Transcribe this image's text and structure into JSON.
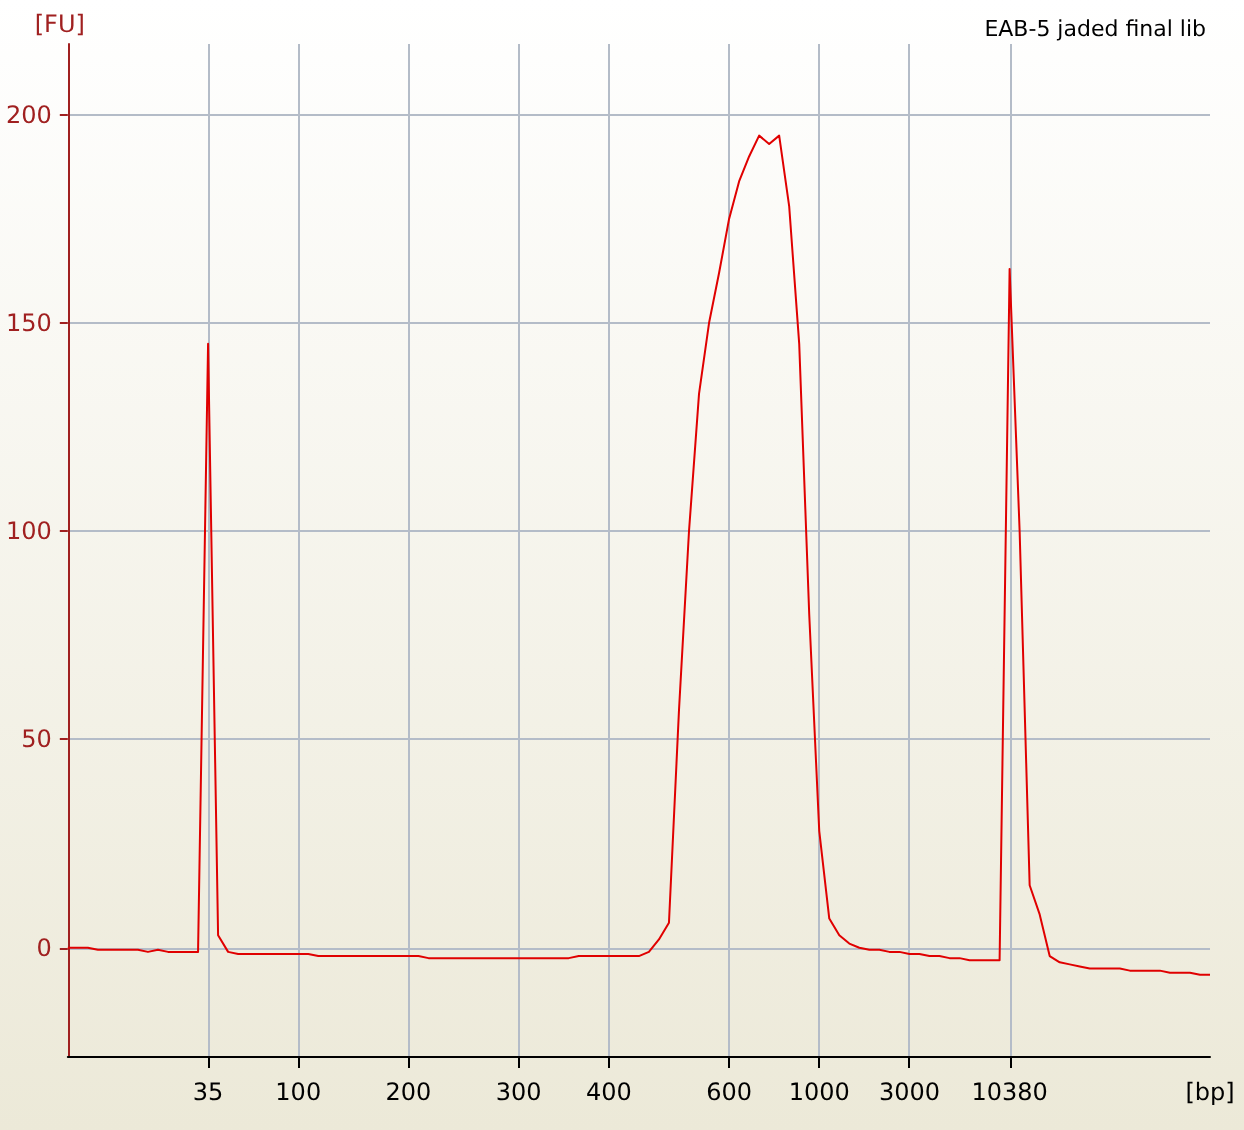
{
  "chart_data": {
    "type": "line",
    "title": "EAB-5 jaded final lib",
    "xlabel": "[bp]",
    "ylabel": "[FU]",
    "categories": [
      null,
      null,
      null,
      null,
      null,
      null,
      null,
      null,
      null,
      null,
      null,
      null,
      null,
      null,
      "35",
      null,
      null,
      null,
      null,
      null,
      null,
      null,
      null,
      "100",
      null,
      null,
      null,
      null,
      null,
      null,
      null,
      null,
      null,
      null,
      "200",
      null,
      null,
      null,
      null,
      null,
      null,
      null,
      null,
      null,
      null,
      "300",
      null,
      null,
      null,
      null,
      null,
      null,
      null,
      null,
      "400",
      null,
      null,
      null,
      null,
      null,
      null,
      null,
      null,
      null,
      null,
      null,
      "600",
      null,
      null,
      null,
      null,
      null,
      null,
      null,
      null,
      "1000",
      null,
      null,
      null,
      null,
      null,
      null,
      null,
      null,
      "3000",
      null,
      null,
      null,
      null,
      null,
      null,
      null,
      null,
      null,
      "10380",
      null,
      null,
      null,
      null,
      null,
      null,
      null,
      null,
      null,
      null,
      null,
      null,
      null,
      null,
      null,
      null,
      null,
      null,
      null,
      null
    ],
    "values": [
      0,
      0,
      0,
      -0.5,
      -0.5,
      -0.5,
      -0.5,
      -0.5,
      -1,
      -0.5,
      -1,
      -1,
      -1,
      -1,
      145,
      3,
      -1,
      -1.5,
      -1.5,
      -1.5,
      -1.5,
      -1.5,
      -1.5,
      -1.5,
      -1.5,
      -2,
      -2,
      -2,
      -2,
      -2,
      -2,
      -2,
      -2,
      -2,
      -2,
      -2,
      -2.5,
      -2.5,
      -2.5,
      -2.5,
      -2.5,
      -2.5,
      -2.5,
      -2.5,
      -2.5,
      -2.5,
      -2.5,
      -2.5,
      -2.5,
      -2.5,
      -2.5,
      -2,
      -2,
      -2,
      -2,
      -2,
      -2,
      -2,
      -1,
      2,
      6,
      57,
      100,
      133,
      150,
      162,
      175,
      184,
      190,
      195,
      193,
      195,
      178,
      145,
      80,
      28,
      7,
      3,
      1,
      0,
      -0.5,
      -0.5,
      -1,
      -1,
      -1.5,
      -1.5,
      -2,
      -2,
      -2.5,
      -2.5,
      -3,
      -3,
      -3,
      -3,
      163,
      100,
      15,
      8,
      -2,
      -3.5,
      -4,
      -4.5,
      -5,
      -5,
      -5,
      -5,
      -5.5,
      -5.5,
      -5.5,
      -5.5,
      -6,
      -6,
      -6,
      -6.5,
      -6.5
    ],
    "color": "#e00000",
    "ylim": [
      -26,
      217
    ],
    "yticks": [
      0,
      50,
      100,
      150,
      200
    ],
    "grid": true,
    "legend": false
  }
}
